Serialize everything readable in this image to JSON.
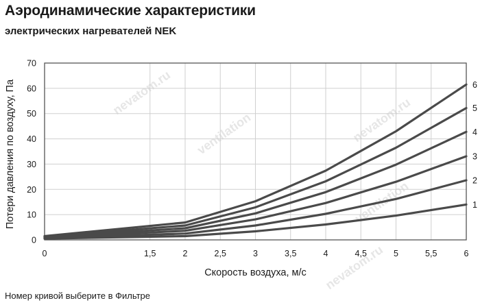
{
  "header": {
    "title": "Аэродинамические характеристики",
    "subtitle": "электрических нагревателей NEK"
  },
  "footnote": "Номер кривой выберите в Фильтре",
  "colors": {
    "line": "#4a4a4a",
    "grid": "#cfcfcf",
    "frame": "#555555",
    "watermark": "#e6e6e6"
  },
  "watermark": {
    "logo_text": "ventilation",
    "site_text": "nevatom.ru"
  },
  "chart_data": {
    "type": "line",
    "title": "",
    "xlabel": "Скорость воздуха, м/с",
    "ylabel": "Потери давления по воздуху, Па",
    "xlim": [
      0,
      6
    ],
    "ylim": [
      0,
      70
    ],
    "x_ticks": [
      "0",
      "1,5",
      "2",
      "2,5",
      "3",
      "3,5",
      "4",
      "4,5",
      "5",
      "5,5",
      "6"
    ],
    "y_ticks": [
      "0",
      "10",
      "20",
      "30",
      "40",
      "50",
      "60",
      "70"
    ],
    "grid": true,
    "legend": "curve numbers at right end of lines",
    "series": [
      {
        "name": "1",
        "points": [
          [
            0,
            0.5
          ],
          [
            2,
            1.5
          ],
          [
            3,
            3.4
          ],
          [
            4,
            6.1
          ],
          [
            5,
            9.6
          ],
          [
            6,
            14.0
          ]
        ]
      },
      {
        "name": "2",
        "points": [
          [
            0,
            0.7
          ],
          [
            2,
            2.5
          ],
          [
            3,
            5.7
          ],
          [
            4,
            10.3
          ],
          [
            5,
            16.2
          ],
          [
            6,
            23.6
          ]
        ]
      },
      {
        "name": "3",
        "points": [
          [
            0,
            0.9
          ],
          [
            2,
            3.6
          ],
          [
            3,
            8.1
          ],
          [
            4,
            14.6
          ],
          [
            5,
            23.0
          ],
          [
            6,
            33.1
          ]
        ]
      },
      {
        "name": "4",
        "points": [
          [
            0,
            1.1
          ],
          [
            2,
            4.6
          ],
          [
            3,
            10.5
          ],
          [
            4,
            18.9
          ],
          [
            5,
            29.8
          ],
          [
            6,
            42.8
          ]
        ]
      },
      {
        "name": "5",
        "points": [
          [
            0,
            1.3
          ],
          [
            2,
            5.7
          ],
          [
            3,
            12.9
          ],
          [
            4,
            23.2
          ],
          [
            5,
            36.5
          ],
          [
            6,
            52.2
          ]
        ]
      },
      {
        "name": "6",
        "points": [
          [
            0,
            1.5
          ],
          [
            2,
            6.9
          ],
          [
            3,
            15.3
          ],
          [
            4,
            27.4
          ],
          [
            5,
            43.0
          ],
          [
            6,
            61.5
          ]
        ]
      }
    ]
  }
}
